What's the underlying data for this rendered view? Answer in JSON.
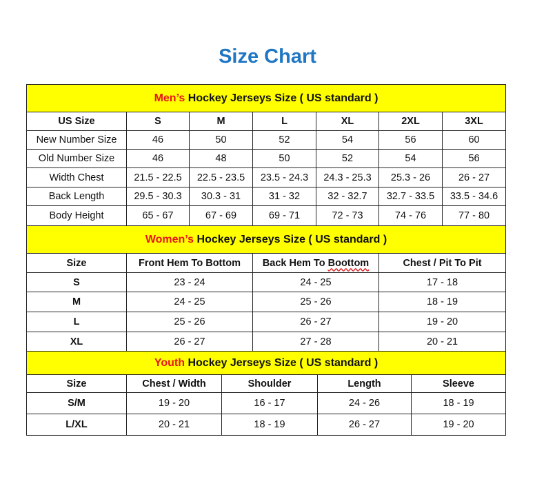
{
  "title": "Size Chart",
  "colors": {
    "title": "#1f77c4",
    "header_bg": "#ffff00",
    "accent": "#e8141c"
  },
  "sections": [
    {
      "id": "men",
      "accent_word": "Men’s",
      "header_rest": " Hockey Jerseys Size ( US standard )",
      "columns": [
        "US Size",
        "S",
        "M",
        "L",
        "XL",
        "2XL",
        "3XL"
      ],
      "rows": [
        [
          "New Number Size",
          "46",
          "50",
          "52",
          "54",
          "56",
          "60"
        ],
        [
          "Old Number Size",
          "46",
          "48",
          "50",
          "52",
          "54",
          "56"
        ],
        [
          "Width Chest",
          "21.5 - 22.5",
          "22.5 - 23.5",
          "23.5 - 24.3",
          "24.3 - 25.3",
          "25.3 - 26",
          "26 - 27"
        ],
        [
          "Back Length",
          "29.5 - 30.3",
          "30.3 - 31",
          "31 - 32",
          "32 - 32.7",
          "32.7 - 33.5",
          "33.5 - 34.6"
        ],
        [
          "Body Height",
          "65 - 67",
          "67 - 69",
          "69 - 71",
          "72 - 73",
          "74 - 76",
          "77 - 80"
        ]
      ]
    },
    {
      "id": "women",
      "accent_word": "Women’s",
      "header_rest": " Hockey Jerseys Size ( US standard )",
      "columns": [
        "Size",
        "Front Hem To Bottom",
        "Back Hem To Boottom",
        "Chest / Pit To Pit"
      ],
      "rows": [
        [
          "S",
          "23 - 24",
          "24 - 25",
          "17 - 18"
        ],
        [
          "M",
          "24 - 25",
          "25 - 26",
          "18 - 19"
        ],
        [
          "L",
          "25 - 26",
          "26 - 27",
          "19 - 20"
        ],
        [
          "XL",
          "26 - 27",
          "27 - 28",
          "20 - 21"
        ]
      ]
    },
    {
      "id": "youth",
      "accent_word": "Youth",
      "header_rest": " Hockey Jerseys Size ( US standard )",
      "columns": [
        "Size",
        "Chest / Width",
        "Shoulder",
        "Length",
        "Sleeve"
      ],
      "rows": [
        [
          "S/M",
          "19 - 20",
          "16 - 17",
          "24 - 26",
          "18 - 19"
        ],
        [
          "L/XL",
          "20 - 21",
          "18 - 19",
          "26 - 27",
          "19 - 20"
        ]
      ]
    }
  ]
}
